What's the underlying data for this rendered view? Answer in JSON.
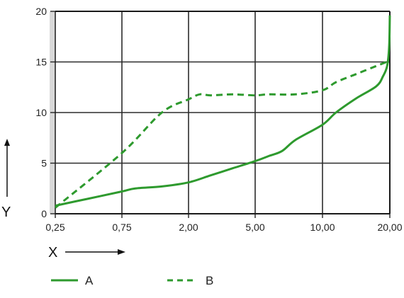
{
  "chart_data": {
    "type": "line",
    "x_tick_labels": [
      "0,25",
      "0,75",
      "2,00",
      "5,00",
      "10,00",
      "20,00"
    ],
    "y_tick_labels": [
      "0",
      "5",
      "10",
      "15",
      "20"
    ],
    "xlabel": "X",
    "ylabel": "Y",
    "ylim": [
      0,
      20
    ],
    "grid": true,
    "legend_position": "bottom",
    "line_color": "#2e9a2e",
    "series": [
      {
        "name": "A",
        "style": "solid",
        "points": [
          [
            0.25,
            0.8
          ],
          [
            0.5,
            1.5
          ],
          [
            0.75,
            2.2
          ],
          [
            1.0,
            2.5
          ],
          [
            1.5,
            2.7
          ],
          [
            2.0,
            3.1
          ],
          [
            3.0,
            3.8
          ],
          [
            4.0,
            4.5
          ],
          [
            5.0,
            5.2
          ],
          [
            6.0,
            5.7
          ],
          [
            7.0,
            6.2
          ],
          [
            8.0,
            7.3
          ],
          [
            10.0,
            8.8
          ],
          [
            12.0,
            10.0
          ],
          [
            15.0,
            11.4
          ],
          [
            18.0,
            12.6
          ],
          [
            19.0,
            13.6
          ],
          [
            19.6,
            14.6
          ],
          [
            19.9,
            16.5
          ],
          [
            20.0,
            19.6
          ]
        ]
      },
      {
        "name": "B",
        "style": "dashed",
        "points": [
          [
            0.25,
            0.6
          ],
          [
            0.75,
            6.0
          ],
          [
            1.5,
            10.0
          ],
          [
            2.0,
            11.3
          ],
          [
            2.5,
            11.8
          ],
          [
            3.0,
            11.7
          ],
          [
            4.0,
            11.8
          ],
          [
            5.0,
            11.7
          ],
          [
            6.0,
            11.8
          ],
          [
            8.0,
            11.8
          ],
          [
            10.0,
            12.2
          ],
          [
            12.0,
            13.0
          ],
          [
            15.0,
            13.8
          ],
          [
            18.0,
            14.6
          ],
          [
            19.5,
            15.0
          ]
        ]
      }
    ]
  }
}
